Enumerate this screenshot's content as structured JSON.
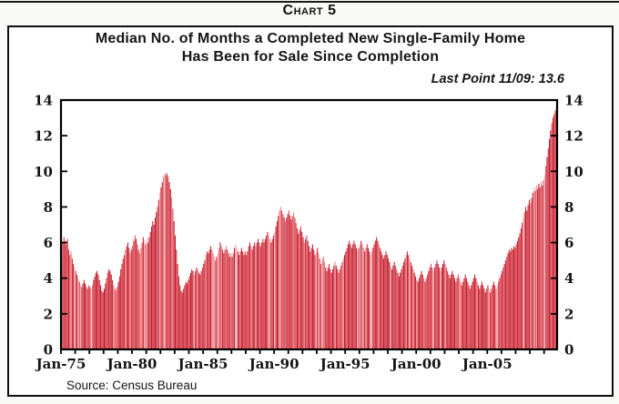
{
  "page": {
    "chart_label": "Chart 5",
    "title_line1": "Median No. of Months a Completed New Single-Family Home",
    "title_line2": "Has Been for Sale Since Completion",
    "annotation": "Last Point 11/09: 13.6",
    "source": "Source: Census Bureau"
  },
  "chart_data": {
    "type": "bar",
    "title": "Median No. of Months a Completed New Single-Family Home Has Been for Sale Since Completion",
    "annotation": "Last Point 11/09: 13.6",
    "x_start": "1975-01",
    "x_end": "2009-11",
    "frequency": "monthly",
    "ylim": [
      0,
      14
    ],
    "y_ticks": [
      0,
      2,
      4,
      6,
      8,
      10,
      12,
      14
    ],
    "x_tick_labels": [
      "Jan-75",
      "Jan-80",
      "Jan-85",
      "Jan-90",
      "Jan-95",
      "Jan-00",
      "Jan-05"
    ],
    "x_label_interval_months": 60,
    "x_minor_tick_interval_months": 12,
    "legend": "none",
    "grid": "off",
    "last_point": {
      "date": "11/09",
      "value": 13.6
    },
    "bar_colors": [
      "#ce1f2c",
      "#c2182a",
      "#da3d49",
      "#e8767e",
      "#f2abb0"
    ],
    "frame_color": "#000000",
    "values": [
      5.2,
      6.0,
      6.3,
      6.1,
      5.9,
      6.2,
      5.6,
      5.3,
      5.5,
      5.1,
      4.8,
      4.6,
      4.4,
      4.2,
      4.0,
      3.8,
      3.6,
      3.5,
      3.7,
      3.9,
      3.7,
      3.5,
      3.4,
      3.6,
      3.5,
      3.4,
      3.6,
      3.9,
      4.1,
      4.3,
      4.4,
      4.2,
      3.9,
      3.6,
      3.3,
      3.2,
      3.4,
      3.7,
      4.0,
      4.3,
      4.5,
      4.4,
      4.2,
      3.9,
      3.6,
      3.4,
      3.3,
      3.5,
      3.8,
      4.1,
      4.5,
      4.8,
      5.1,
      5.3,
      5.6,
      5.8,
      6.0,
      5.7,
      5.4,
      5.6,
      5.8,
      6.1,
      6.4,
      6.2,
      5.9,
      5.6,
      5.4,
      5.7,
      6.0,
      6.3,
      6.1,
      5.9,
      6.2,
      6.0,
      6.3,
      6.6,
      6.9,
      7.2,
      7.0,
      7.4,
      7.7,
      8.0,
      8.4,
      8.8,
      9.1,
      9.4,
      9.7,
      9.9,
      9.8,
      9.9,
      9.7,
      9.4,
      9.0,
      8.5,
      7.9,
      7.2,
      6.4,
      5.6,
      4.8,
      4.1,
      3.6,
      3.3,
      3.2,
      3.4,
      3.6,
      3.8,
      3.7,
      3.9,
      4.1,
      4.3,
      4.5,
      4.4,
      4.2,
      4.4,
      4.6,
      4.5,
      4.3,
      4.2,
      4.4,
      4.6,
      4.8,
      5.0,
      5.3,
      5.5,
      5.4,
      5.6,
      5.8,
      5.6,
      5.4,
      5.2,
      5.0,
      5.2,
      5.4,
      5.7,
      6.0,
      5.8,
      5.6,
      5.4,
      5.6,
      5.8,
      5.6,
      5.4,
      5.2,
      5.4,
      5.2,
      5.4,
      5.7,
      5.9,
      5.7,
      5.5,
      5.3,
      5.5,
      5.7,
      5.5,
      5.3,
      5.5,
      5.3,
      5.5,
      5.8,
      6.0,
      5.8,
      5.6,
      5.8,
      6.0,
      5.8,
      6.0,
      6.2,
      6.0,
      5.8,
      6.0,
      6.2,
      6.0,
      6.2,
      6.4,
      6.6,
      6.4,
      6.2,
      6.0,
      6.2,
      6.4,
      6.6,
      6.9,
      7.2,
      7.5,
      7.8,
      8.0,
      7.8,
      7.6,
      7.4,
      7.2,
      7.4,
      7.6,
      7.8,
      7.5,
      7.3,
      7.5,
      7.7,
      7.4,
      7.1,
      6.8,
      6.5,
      6.7,
      6.9,
      6.6,
      6.3,
      6.0,
      6.2,
      6.4,
      6.1,
      5.8,
      5.5,
      5.7,
      5.9,
      5.6,
      5.3,
      5.5,
      5.7,
      5.4,
      5.1,
      4.8,
      5.0,
      5.2,
      4.9,
      4.6,
      4.4,
      4.6,
      4.8,
      4.5,
      4.3,
      4.5,
      4.7,
      4.9,
      4.7,
      4.5,
      4.3,
      4.5,
      4.7,
      4.9,
      5.1,
      5.3,
      5.5,
      5.7,
      5.9,
      6.1,
      5.9,
      5.7,
      5.9,
      6.1,
      5.9,
      5.7,
      5.5,
      5.7,
      5.9,
      6.1,
      5.9,
      5.7,
      5.5,
      5.7,
      5.9,
      5.7,
      5.5,
      5.3,
      5.5,
      5.7,
      5.9,
      6.1,
      6.3,
      6.1,
      5.9,
      5.7,
      5.5,
      5.3,
      5.1,
      5.3,
      5.5,
      5.3,
      5.1,
      4.9,
      4.7,
      4.5,
      4.7,
      4.9,
      4.7,
      4.5,
      4.3,
      4.1,
      4.3,
      4.5,
      4.7,
      4.9,
      5.1,
      5.3,
      5.5,
      5.3,
      5.1,
      4.9,
      4.7,
      4.5,
      4.3,
      4.1,
      3.9,
      3.8,
      4.0,
      4.2,
      4.4,
      4.2,
      4.0,
      3.8,
      4.0,
      4.2,
      4.4,
      4.6,
      4.8,
      4.6,
      4.4,
      4.6,
      4.8,
      5.0,
      4.8,
      4.6,
      4.4,
      4.6,
      4.8,
      5.0,
      4.8,
      4.6,
      4.4,
      4.2,
      4.0,
      4.2,
      4.4,
      4.2,
      4.0,
      3.8,
      4.0,
      4.2,
      4.0,
      3.8,
      3.6,
      3.8,
      4.0,
      4.2,
      4.0,
      3.8,
      3.6,
      3.4,
      3.6,
      3.8,
      4.0,
      4.2,
      4.0,
      3.8,
      3.6,
      3.4,
      3.6,
      3.8,
      3.6,
      3.4,
      3.2,
      3.4,
      3.6,
      3.4,
      3.2,
      3.4,
      3.6,
      3.8,
      3.6,
      3.4,
      3.6,
      3.8,
      4.0,
      4.2,
      4.4,
      4.6,
      4.8,
      5.0,
      5.2,
      5.4,
      5.6,
      5.5,
      5.7,
      5.6,
      5.8,
      5.7,
      5.9,
      6.1,
      6.3,
      6.5,
      6.8,
      7.1,
      7.4,
      7.7,
      8.0,
      7.8,
      8.1,
      8.4,
      8.2,
      8.5,
      8.8,
      9.1,
      8.9,
      9.2,
      9.0,
      9.3,
      9.1,
      9.4,
      9.2,
      9.5,
      9.8,
      10.3,
      10.8,
      11.3,
      11.8,
      12.3,
      12.7,
      13.0,
      13.2,
      13.4,
      13.6
    ]
  }
}
